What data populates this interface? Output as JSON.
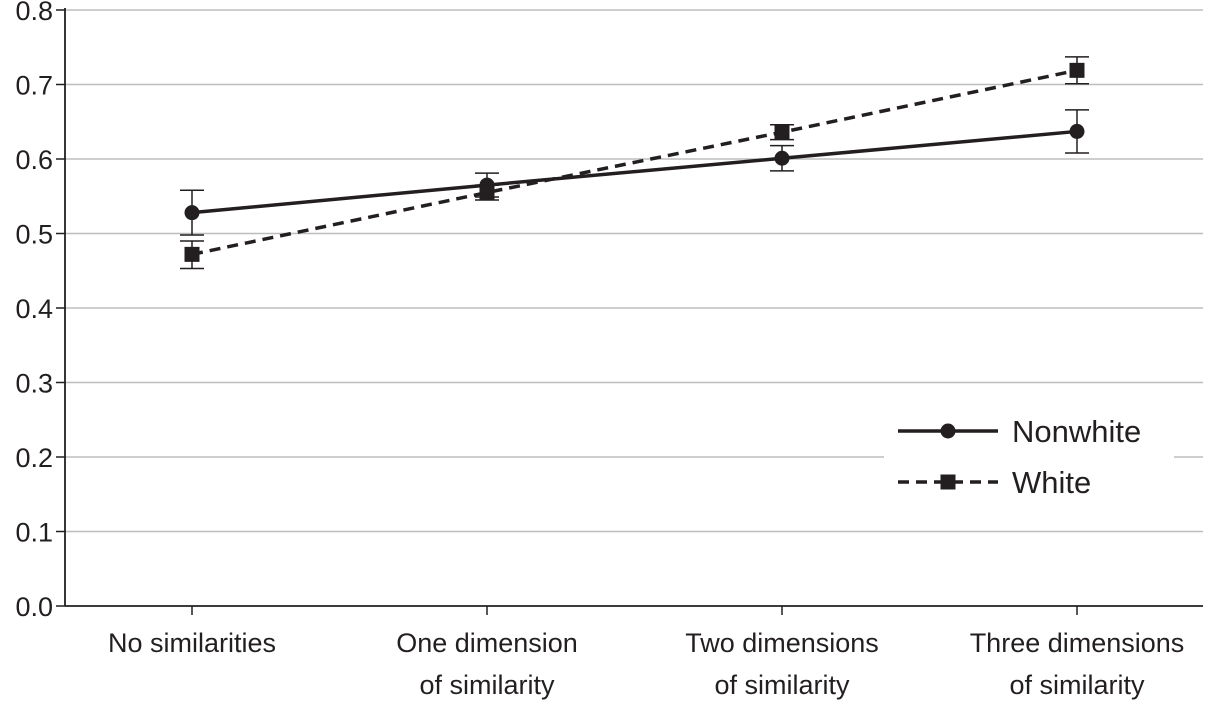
{
  "chart_data": {
    "type": "line",
    "title": "",
    "xlabel": "",
    "ylabel": "",
    "categories": [
      [
        "No similarities"
      ],
      [
        "One dimension",
        "of similarity"
      ],
      [
        "Two dimensions",
        "of similarity"
      ],
      [
        "Three dimensions",
        "of similarity"
      ]
    ],
    "ylim": [
      0,
      0.8
    ],
    "yticks": [
      "0.0",
      "0.1",
      "0.2",
      "0.3",
      "0.4",
      "0.5",
      "0.6",
      "0.7",
      "0.8"
    ],
    "grid": true,
    "legend_position": "right",
    "series": [
      {
        "name": "Nonwhite",
        "line": "solid",
        "marker": "circle",
        "values": [
          0.528,
          0.565,
          0.601,
          0.637
        ],
        "error_low": [
          0.498,
          0.549,
          0.584,
          0.608
        ],
        "error_high": [
          0.558,
          0.581,
          0.618,
          0.666
        ]
      },
      {
        "name": "White",
        "line": "dashed",
        "marker": "square",
        "values": [
          0.472,
          0.555,
          0.636,
          0.719
        ],
        "error_low": [
          0.453,
          0.545,
          0.626,
          0.701
        ],
        "error_high": [
          0.49,
          0.565,
          0.646,
          0.737
        ]
      }
    ],
    "colors": {
      "line": "#231f20",
      "grid": "#bdbdbd"
    }
  }
}
